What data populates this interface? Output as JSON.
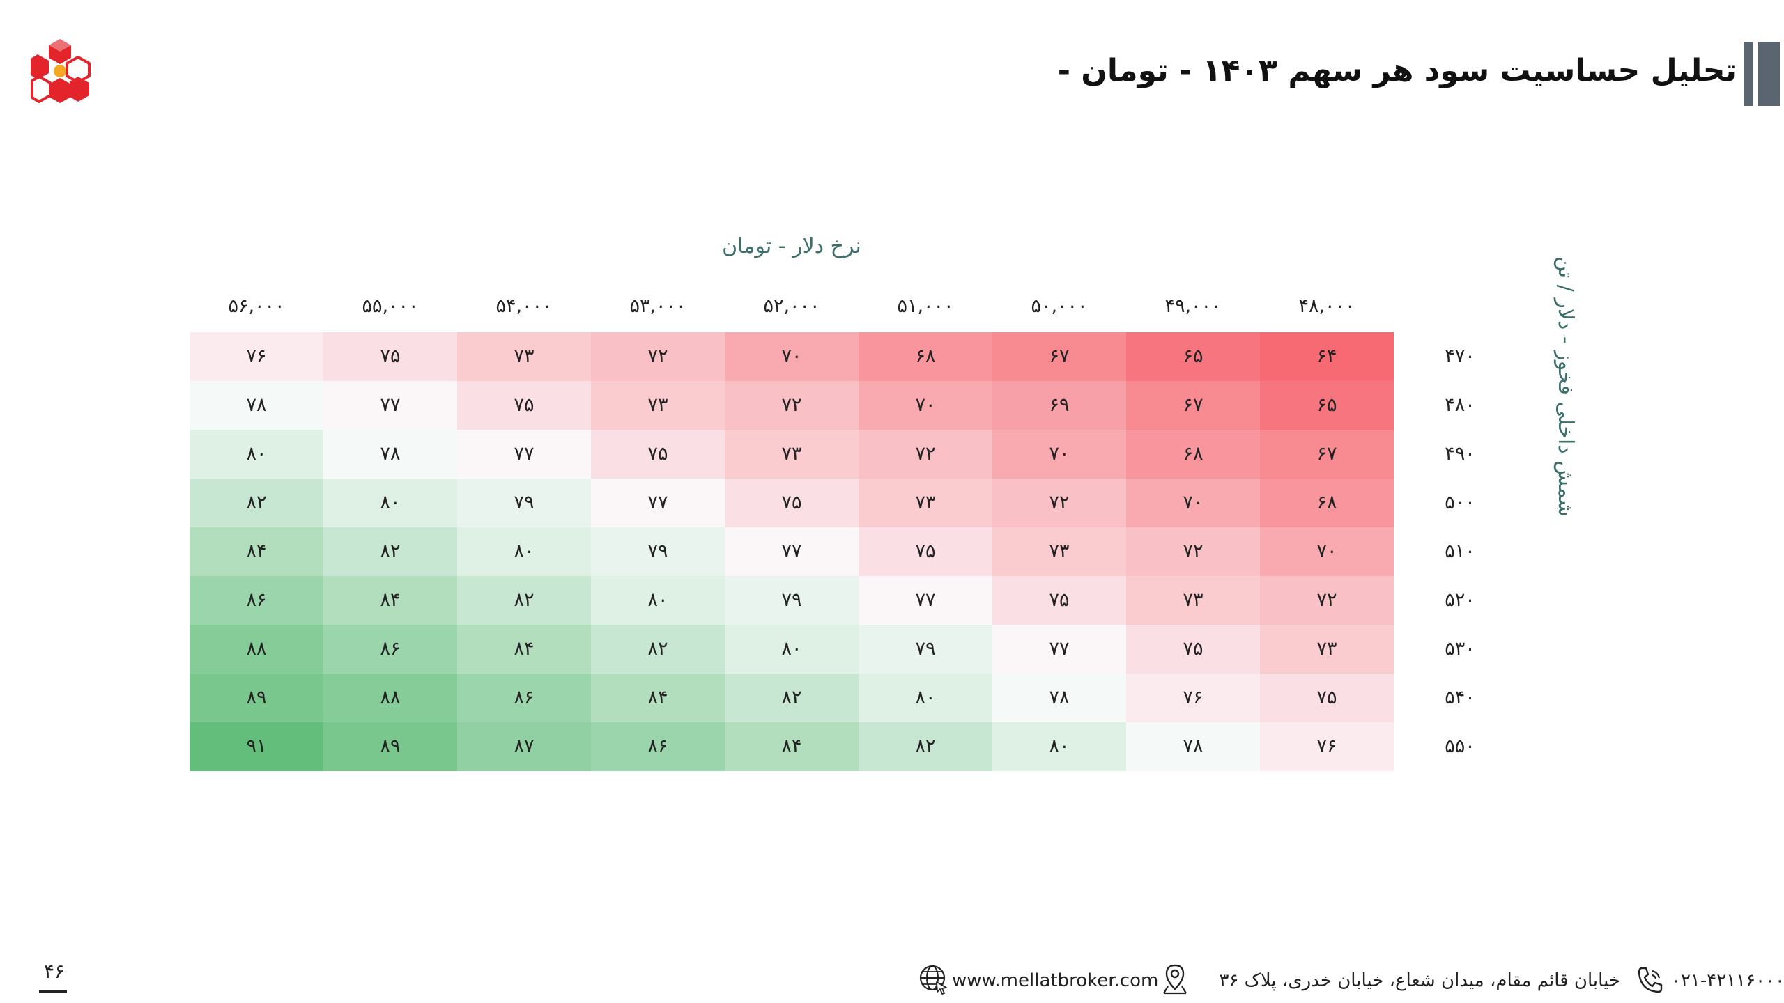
{
  "slide": {
    "title": "تحلیل حساسیت سود هر سهم ۱۴۰۳ - تومان -",
    "page_number": "۴۶"
  },
  "footer": {
    "phone": "۰۲۱-۴۲۱۱۶۰۰۰",
    "address": "خیابان قائم مقام، میدان شعاع، خیابان خدری، پلاک ۳۶",
    "website": "www.mellatbroker.com",
    "icons": [
      "phone-icon",
      "location-pin-icon",
      "globe-icon"
    ]
  },
  "colors": {
    "low": "#f76a74",
    "mid": "#fbfbfd",
    "high": "#63be7b",
    "accent": "#5a6570",
    "logo_red": "#e3242b",
    "logo_orange": "#f5a623"
  },
  "chart_data": {
    "type": "heatmap",
    "title": "تحلیل حساسیت سود هر سهم ۱۴۰۳ - تومان -",
    "xlabel": "نرخ دلار - تومان",
    "ylabel": "شمش داخلی فخوز - دلار / تن",
    "x": [
      48000,
      49000,
      50000,
      51000,
      52000,
      53000,
      54000,
      55000,
      56000
    ],
    "x_labels": [
      "۴۸,۰۰۰",
      "۴۹,۰۰۰",
      "۵۰,۰۰۰",
      "۵۱,۰۰۰",
      "۵۲,۰۰۰",
      "۵۳,۰۰۰",
      "۵۴,۰۰۰",
      "۵۵,۰۰۰",
      "۵۶,۰۰۰"
    ],
    "y": [
      470,
      480,
      490,
      500,
      510,
      520,
      530,
      540,
      550
    ],
    "y_labels": [
      "۴۷۰",
      "۴۸۰",
      "۴۹۰",
      "۵۰۰",
      "۵۱۰",
      "۵۲۰",
      "۵۳۰",
      "۵۴۰",
      "۵۵۰"
    ],
    "values": [
      [
        64,
        65,
        67,
        68,
        70,
        72,
        73,
        75,
        76
      ],
      [
        65,
        67,
        69,
        70,
        72,
        73,
        75,
        77,
        78
      ],
      [
        67,
        68,
        70,
        72,
        73,
        75,
        77,
        78,
        80
      ],
      [
        68,
        70,
        72,
        73,
        75,
        77,
        79,
        80,
        82
      ],
      [
        70,
        72,
        73,
        75,
        77,
        79,
        80,
        82,
        84
      ],
      [
        72,
        73,
        75,
        77,
        79,
        80,
        82,
        84,
        86
      ],
      [
        73,
        75,
        77,
        79,
        80,
        82,
        84,
        86,
        88
      ],
      [
        75,
        76,
        78,
        80,
        82,
        84,
        86,
        88,
        89
      ],
      [
        76,
        78,
        80,
        82,
        84,
        86,
        87,
        89,
        91
      ]
    ],
    "value_labels": [
      [
        "۶۴",
        "۶۵",
        "۶۷",
        "۶۸",
        "۷۰",
        "۷۲",
        "۷۳",
        "۷۵",
        "۷۶"
      ],
      [
        "۶۵",
        "۶۷",
        "۶۹",
        "۷۰",
        "۷۲",
        "۷۳",
        "۷۵",
        "۷۷",
        "۷۸"
      ],
      [
        "۶۷",
        "۶۸",
        "۷۰",
        "۷۲",
        "۷۳",
        "۷۵",
        "۷۷",
        "۷۸",
        "۸۰"
      ],
      [
        "۶۸",
        "۷۰",
        "۷۲",
        "۷۳",
        "۷۵",
        "۷۷",
        "۷۹",
        "۸۰",
        "۸۲"
      ],
      [
        "۷۰",
        "۷۲",
        "۷۳",
        "۷۵",
        "۷۷",
        "۷۹",
        "۸۰",
        "۸۲",
        "۸۴"
      ],
      [
        "۷۲",
        "۷۳",
        "۷۵",
        "۷۷",
        "۷۹",
        "۸۰",
        "۸۲",
        "۸۴",
        "۸۶"
      ],
      [
        "۷۳",
        "۷۵",
        "۷۷",
        "۷۹",
        "۸۰",
        "۸۲",
        "۸۴",
        "۸۶",
        "۸۸"
      ],
      [
        "۷۵",
        "۷۶",
        "۷۸",
        "۸۰",
        "۸۲",
        "۸۴",
        "۸۶",
        "۸۸",
        "۸۹"
      ],
      [
        "۷۶",
        "۷۸",
        "۸۰",
        "۸۲",
        "۸۴",
        "۸۶",
        "۸۷",
        "۸۹",
        "۹۱"
      ]
    ],
    "x_direction": "right-to-left",
    "color_scale": "red-white-green",
    "grid": false,
    "legend": "none"
  }
}
